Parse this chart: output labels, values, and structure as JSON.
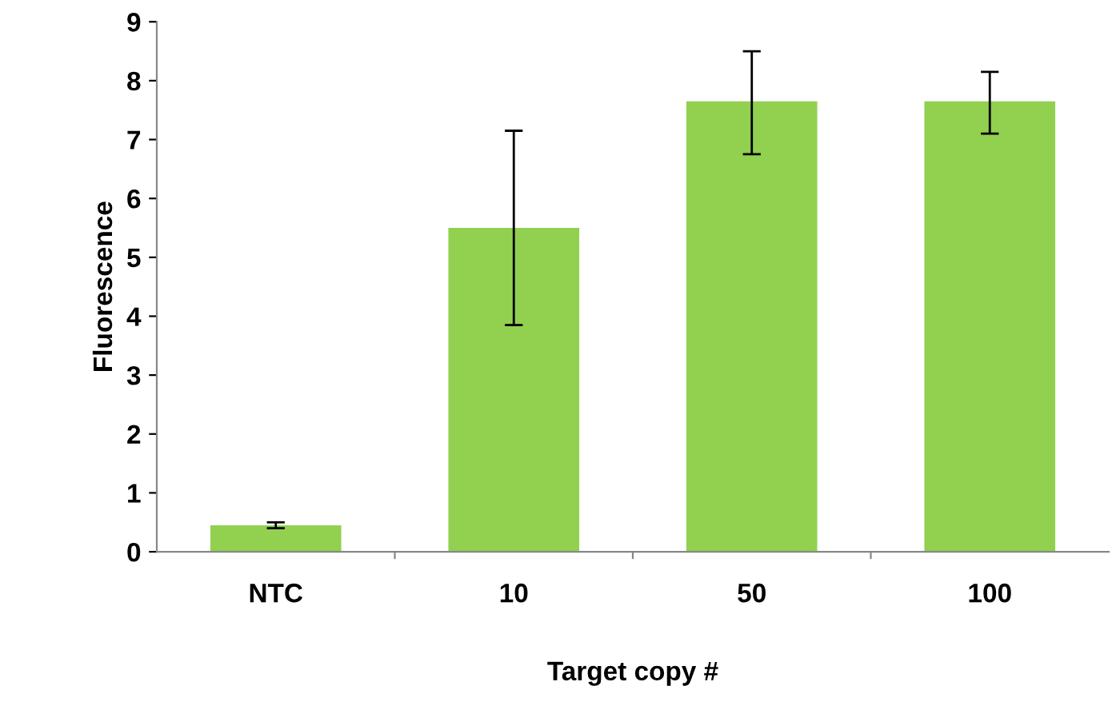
{
  "chart_data": {
    "type": "bar",
    "xlabel": "Target copy #",
    "ylabel": "Fluorescence",
    "categories": [
      "NTC",
      "10",
      "50",
      "100"
    ],
    "values": [
      0.45,
      5.5,
      7.65,
      7.65
    ],
    "errors": [
      0.05,
      [
        3.85,
        7.15
      ],
      [
        6.75,
        8.5
      ],
      [
        7.1,
        8.15
      ]
    ],
    "color": "#92d050",
    "ylim": [
      0,
      9
    ],
    "yticks": [
      0,
      1,
      2,
      3,
      4,
      5,
      6,
      7,
      8,
      9
    ],
    "grid": false,
    "legend": false
  }
}
